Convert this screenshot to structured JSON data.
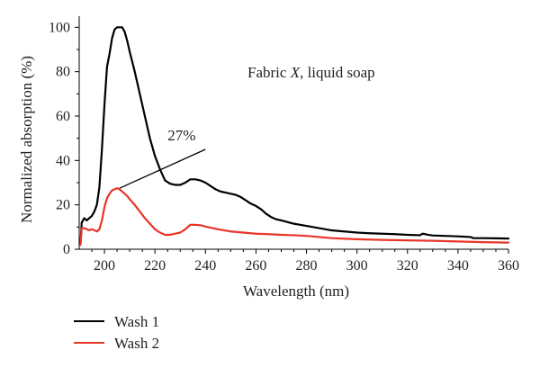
{
  "chart_data": {
    "type": "line",
    "title_parts": {
      "pre": "Fabric ",
      "italic": "X",
      "post": ", liquid soap"
    },
    "xlabel": "Wavelength (nm)",
    "ylabel": "Normalized absorption (%)",
    "xlim": [
      190,
      360
    ],
    "ylim": [
      0,
      105
    ],
    "xticks": [
      200,
      220,
      240,
      260,
      280,
      300,
      320,
      340,
      360
    ],
    "yticks": [
      0,
      20,
      40,
      60,
      80,
      100
    ],
    "grid": false,
    "legend_position": "bottom-left",
    "annotation": {
      "text": "27%"
    },
    "series": [
      {
        "name": "Wash 1",
        "color": "#000000",
        "x": [
          190.5,
          191,
          192,
          193,
          194,
          195,
          196,
          197,
          198,
          199,
          200,
          201,
          202,
          203,
          204,
          205,
          206,
          207,
          208,
          209,
          210,
          212,
          214,
          216,
          218,
          220,
          222,
          224,
          226,
          228,
          230,
          232,
          234,
          236,
          238,
          240,
          242,
          244,
          246,
          248,
          250,
          252,
          254,
          256,
          258,
          260,
          262,
          264,
          266,
          268,
          270,
          275,
          280,
          285,
          290,
          295,
          300,
          305,
          310,
          315,
          320,
          325,
          326,
          327,
          328,
          330,
          335,
          340,
          345,
          346,
          350,
          355,
          360
        ],
        "y": [
          2,
          12,
          14,
          13,
          14,
          15,
          17,
          20,
          28,
          45,
          65,
          82,
          88,
          95,
          99,
          100,
          100,
          100,
          98,
          94,
          89,
          80,
          70,
          60,
          50,
          42,
          36,
          31,
          29.5,
          29,
          29,
          30,
          31.5,
          31.5,
          31,
          30,
          28.5,
          27,
          26,
          25.5,
          25,
          24.5,
          23.5,
          22,
          20.5,
          19.5,
          18,
          16,
          14.5,
          13.5,
          13,
          11.5,
          10.5,
          9.5,
          8.5,
          8,
          7.5,
          7.2,
          7,
          6.8,
          6.5,
          6.3,
          7,
          6.8,
          6.5,
          6.2,
          6,
          5.8,
          5.5,
          5,
          5,
          4.9,
          4.8
        ]
      },
      {
        "name": "Wash 2",
        "color": "#e8352a",
        "x": [
          190.5,
          191,
          192,
          193,
          194,
          195,
          196,
          197,
          198,
          199,
          200,
          201,
          202,
          203,
          204,
          205,
          206,
          207,
          208,
          209,
          210,
          212,
          214,
          216,
          218,
          220,
          222,
          224,
          226,
          228,
          230,
          232,
          234,
          236,
          238,
          240,
          245,
          250,
          255,
          260,
          265,
          270,
          275,
          280,
          285,
          290,
          300,
          310,
          320,
          330,
          340,
          350,
          360
        ],
        "y": [
          2,
          9.5,
          9.5,
          9,
          8.5,
          9,
          8.5,
          8,
          9,
          13,
          19,
          23,
          25,
          26.5,
          27,
          27.5,
          27,
          26,
          25,
          24,
          22.5,
          20,
          17,
          14,
          11.5,
          9,
          7.5,
          6.5,
          6.5,
          7,
          7.5,
          9,
          11,
          11,
          10.8,
          10.2,
          9,
          8,
          7.5,
          7,
          6.8,
          6.5,
          6.3,
          6,
          5.5,
          5,
          4.5,
          4.2,
          4,
          3.8,
          3.5,
          3.2,
          3
        ]
      }
    ]
  }
}
